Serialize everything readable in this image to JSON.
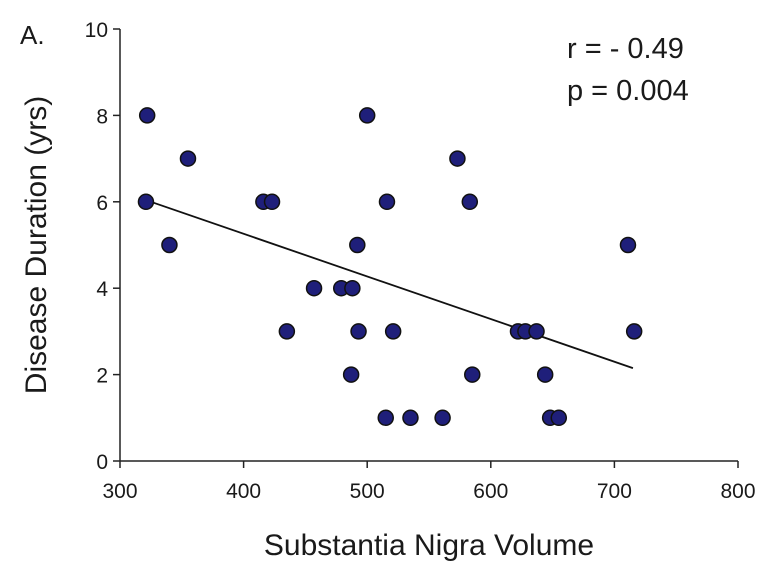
{
  "panel_label": "A.",
  "stats": {
    "r": "r = - 0.49",
    "p": "p = 0.004"
  },
  "colors": {
    "point_fill": "#1f1f7a",
    "point_stroke": "#111111",
    "line": "#111111",
    "axis": "#222222"
  },
  "chart_data": {
    "type": "scatter",
    "xlabel": "Substantia Nigra Volume",
    "ylabel": "Disease Duration (yrs)",
    "xlim": [
      300,
      800
    ],
    "ylim": [
      0,
      10
    ],
    "x_ticks": [
      300,
      400,
      500,
      600,
      700,
      800
    ],
    "y_ticks": [
      0,
      2,
      4,
      6,
      8,
      10
    ],
    "points": [
      {
        "x": 322,
        "y": 8
      },
      {
        "x": 321,
        "y": 6
      },
      {
        "x": 340,
        "y": 5
      },
      {
        "x": 355,
        "y": 7
      },
      {
        "x": 416,
        "y": 6
      },
      {
        "x": 423,
        "y": 6
      },
      {
        "x": 435,
        "y": 3
      },
      {
        "x": 457,
        "y": 4
      },
      {
        "x": 479,
        "y": 4
      },
      {
        "x": 488,
        "y": 4
      },
      {
        "x": 487,
        "y": 2
      },
      {
        "x": 492,
        "y": 5
      },
      {
        "x": 493,
        "y": 3
      },
      {
        "x": 500,
        "y": 8
      },
      {
        "x": 516,
        "y": 6
      },
      {
        "x": 515,
        "y": 1
      },
      {
        "x": 521,
        "y": 3
      },
      {
        "x": 535,
        "y": 1
      },
      {
        "x": 561,
        "y": 1
      },
      {
        "x": 573,
        "y": 7
      },
      {
        "x": 583,
        "y": 6
      },
      {
        "x": 585,
        "y": 2
      },
      {
        "x": 622,
        "y": 3
      },
      {
        "x": 628,
        "y": 3
      },
      {
        "x": 637,
        "y": 3
      },
      {
        "x": 644,
        "y": 2
      },
      {
        "x": 648,
        "y": 1
      },
      {
        "x": 655,
        "y": 1
      },
      {
        "x": 711,
        "y": 5
      },
      {
        "x": 716,
        "y": 3
      }
    ],
    "trendline": {
      "x": [
        325,
        715
      ],
      "y": [
        6.0,
        2.15
      ]
    }
  }
}
